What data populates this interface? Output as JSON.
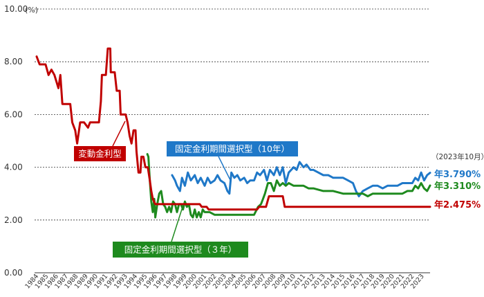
{
  "chart_data": {
    "type": "line",
    "unit_label": "(%)",
    "ylim": [
      0,
      10
    ],
    "y_ticks": [
      "0.00",
      "2.00",
      "4.00",
      "6.00",
      "8.00",
      "10.00"
    ],
    "x_ticks": [
      "1984",
      "1985",
      "1986",
      "1987",
      "1988",
      "1989",
      "1990",
      "1991",
      "1992",
      "1993",
      "1994",
      "1995",
      "1996",
      "1997",
      "1998",
      "1999",
      "2000",
      "2001",
      "2002",
      "2003",
      "2004",
      "2005",
      "2006",
      "2007",
      "2008",
      "2009",
      "2010",
      "2011",
      "2012",
      "2013",
      "2014",
      "2015",
      "2016",
      "2017",
      "2018",
      "2019",
      "2020",
      "2021",
      "2022",
      "2023"
    ],
    "as_of": "（2023年10月）",
    "grid": "horizontal dashed",
    "series": [
      {
        "name": "変動金利型",
        "color": "#c00000",
        "end_label": "年2.475%",
        "points": [
          [
            1984.0,
            8.2
          ],
          [
            1984.3,
            7.9
          ],
          [
            1984.9,
            7.9
          ],
          [
            1985.2,
            7.5
          ],
          [
            1985.5,
            7.7
          ],
          [
            1985.8,
            7.5
          ],
          [
            1986.2,
            7.0
          ],
          [
            1986.4,
            7.5
          ],
          [
            1986.6,
            6.4
          ],
          [
            1987.4,
            6.4
          ],
          [
            1987.6,
            5.7
          ],
          [
            1987.9,
            5.4
          ],
          [
            1988.1,
            4.9
          ],
          [
            1988.4,
            5.7
          ],
          [
            1988.8,
            5.7
          ],
          [
            1989.2,
            5.5
          ],
          [
            1989.4,
            5.7
          ],
          [
            1990.3,
            5.7
          ],
          [
            1990.5,
            6.5
          ],
          [
            1990.6,
            7.5
          ],
          [
            1991.0,
            7.5
          ],
          [
            1991.2,
            8.5
          ],
          [
            1991.45,
            8.5
          ],
          [
            1991.5,
            7.6
          ],
          [
            1991.9,
            7.6
          ],
          [
            1992.1,
            6.9
          ],
          [
            1992.4,
            6.9
          ],
          [
            1992.5,
            6.0
          ],
          [
            1993.0,
            6.0
          ],
          [
            1993.2,
            5.7
          ],
          [
            1993.4,
            5.2
          ],
          [
            1993.6,
            4.9
          ],
          [
            1993.8,
            5.4
          ],
          [
            1994.0,
            5.4
          ],
          [
            1994.1,
            4.6
          ],
          [
            1994.3,
            3.8
          ],
          [
            1994.5,
            3.8
          ],
          [
            1994.6,
            4.4
          ],
          [
            1994.8,
            4.4
          ],
          [
            1995.0,
            4.0
          ],
          [
            1995.25,
            4.0
          ],
          [
            1995.45,
            3.5
          ],
          [
            1995.6,
            3.1
          ],
          [
            1995.75,
            2.8
          ],
          [
            1996.0,
            2.6
          ],
          [
            1998.0,
            2.6
          ],
          [
            1998.5,
            2.6
          ],
          [
            1999.0,
            2.6
          ],
          [
            2000.5,
            2.6
          ],
          [
            2000.7,
            2.5
          ],
          [
            2001.2,
            2.5
          ],
          [
            2001.4,
            2.4
          ],
          [
            2006.3,
            2.4
          ],
          [
            2006.5,
            2.5
          ],
          [
            2007.2,
            2.5
          ],
          [
            2007.5,
            2.9
          ],
          [
            2008.9,
            2.9
          ],
          [
            2009.1,
            2.5
          ],
          [
            2023.8,
            2.5
          ]
        ]
      },
      {
        "name": "固定金利期間選択型（10年）",
        "color": "#1f78c8",
        "end_label": "年3.790%",
        "points": [
          [
            1997.7,
            3.7
          ],
          [
            1998.0,
            3.5
          ],
          [
            1998.2,
            3.3
          ],
          [
            1998.5,
            3.1
          ],
          [
            1998.7,
            3.6
          ],
          [
            1999.0,
            3.3
          ],
          [
            1999.3,
            3.8
          ],
          [
            1999.6,
            3.5
          ],
          [
            2000.0,
            3.7
          ],
          [
            2000.3,
            3.4
          ],
          [
            2000.6,
            3.6
          ],
          [
            2001.0,
            3.3
          ],
          [
            2001.3,
            3.6
          ],
          [
            2001.6,
            3.4
          ],
          [
            2002.0,
            3.5
          ],
          [
            2002.3,
            3.7
          ],
          [
            2002.6,
            3.5
          ],
          [
            2003.0,
            3.4
          ],
          [
            2003.3,
            3.1
          ],
          [
            2003.5,
            3.0
          ],
          [
            2003.7,
            3.8
          ],
          [
            2004.0,
            3.6
          ],
          [
            2004.3,
            3.7
          ],
          [
            2004.6,
            3.5
          ],
          [
            2005.0,
            3.6
          ],
          [
            2005.3,
            3.4
          ],
          [
            2005.6,
            3.5
          ],
          [
            2006.0,
            3.5
          ],
          [
            2006.3,
            3.8
          ],
          [
            2006.6,
            3.7
          ],
          [
            2007.0,
            3.9
          ],
          [
            2007.3,
            3.5
          ],
          [
            2007.6,
            3.9
          ],
          [
            2008.0,
            3.7
          ],
          [
            2008.3,
            4.0
          ],
          [
            2008.6,
            3.7
          ],
          [
            2008.9,
            4.0
          ],
          [
            2009.2,
            3.4
          ],
          [
            2009.5,
            3.8
          ],
          [
            2010.0,
            4.0
          ],
          [
            2010.3,
            3.9
          ],
          [
            2010.6,
            4.2
          ],
          [
            2011.0,
            4.0
          ],
          [
            2011.3,
            4.1
          ],
          [
            2011.7,
            3.9
          ],
          [
            2012.0,
            3.9
          ],
          [
            2012.5,
            3.8
          ],
          [
            2013.0,
            3.7
          ],
          [
            2013.5,
            3.7
          ],
          [
            2014.0,
            3.6
          ],
          [
            2014.5,
            3.6
          ],
          [
            2015.0,
            3.6
          ],
          [
            2015.5,
            3.5
          ],
          [
            2016.0,
            3.4
          ],
          [
            2016.3,
            3.1
          ],
          [
            2016.6,
            2.9
          ],
          [
            2016.8,
            3.0
          ],
          [
            2017.0,
            3.1
          ],
          [
            2017.5,
            3.2
          ],
          [
            2018.0,
            3.3
          ],
          [
            2018.5,
            3.3
          ],
          [
            2019.0,
            3.2
          ],
          [
            2019.5,
            3.3
          ],
          [
            2020.0,
            3.3
          ],
          [
            2020.5,
            3.3
          ],
          [
            2021.0,
            3.4
          ],
          [
            2021.5,
            3.4
          ],
          [
            2022.0,
            3.4
          ],
          [
            2022.3,
            3.6
          ],
          [
            2022.6,
            3.5
          ],
          [
            2022.9,
            3.8
          ],
          [
            2023.2,
            3.5
          ],
          [
            2023.5,
            3.7
          ],
          [
            2023.8,
            3.79
          ]
        ]
      },
      {
        "name": "固定金利期間選択型（３年）",
        "color": "#1e8a1e",
        "end_label": "年3.310%",
        "points": [
          [
            1995.2,
            4.5
          ],
          [
            1995.3,
            4.4
          ],
          [
            1995.45,
            3.5
          ],
          [
            1995.6,
            2.7
          ],
          [
            1995.75,
            2.3
          ],
          [
            1995.9,
            2.8
          ],
          [
            1996.0,
            2.1
          ],
          [
            1996.2,
            2.6
          ],
          [
            1996.4,
            3.0
          ],
          [
            1996.6,
            3.1
          ],
          [
            1996.8,
            2.6
          ],
          [
            1997.0,
            2.5
          ],
          [
            1997.2,
            2.3
          ],
          [
            1997.4,
            2.5
          ],
          [
            1997.6,
            2.3
          ],
          [
            1997.8,
            2.7
          ],
          [
            1998.0,
            2.6
          ],
          [
            1998.2,
            2.3
          ],
          [
            1998.4,
            2.6
          ],
          [
            1998.6,
            2.6
          ],
          [
            1998.8,
            2.4
          ],
          [
            1999.0,
            2.7
          ],
          [
            1999.2,
            2.5
          ],
          [
            1999.4,
            2.6
          ],
          [
            1999.6,
            2.2
          ],
          [
            1999.8,
            2.1
          ],
          [
            2000.0,
            2.4
          ],
          [
            2000.2,
            2.1
          ],
          [
            2000.4,
            2.3
          ],
          [
            2000.6,
            2.1
          ],
          [
            2000.8,
            2.4
          ],
          [
            2001.0,
            2.3
          ],
          [
            2001.5,
            2.3
          ],
          [
            2002.0,
            2.2
          ],
          [
            2003.0,
            2.2
          ],
          [
            2004.0,
            2.2
          ],
          [
            2005.0,
            2.2
          ],
          [
            2006.0,
            2.2
          ],
          [
            2006.4,
            2.5
          ],
          [
            2006.7,
            2.6
          ],
          [
            2006.9,
            2.8
          ],
          [
            2007.1,
            3.0
          ],
          [
            2007.4,
            3.4
          ],
          [
            2007.7,
            3.4
          ],
          [
            2008.0,
            3.1
          ],
          [
            2008.3,
            3.5
          ],
          [
            2008.6,
            3.3
          ],
          [
            2008.9,
            3.4
          ],
          [
            2009.2,
            3.3
          ],
          [
            2009.5,
            3.4
          ],
          [
            2010.0,
            3.3
          ],
          [
            2011.0,
            3.3
          ],
          [
            2011.5,
            3.2
          ],
          [
            2012.0,
            3.2
          ],
          [
            2013.0,
            3.1
          ],
          [
            2014.0,
            3.1
          ],
          [
            2015.0,
            3.0
          ],
          [
            2016.0,
            3.0
          ],
          [
            2016.5,
            3.0
          ],
          [
            2017.0,
            3.0
          ],
          [
            2017.5,
            2.9
          ],
          [
            2018.0,
            3.0
          ],
          [
            2019.0,
            3.0
          ],
          [
            2020.0,
            3.0
          ],
          [
            2021.0,
            3.0
          ],
          [
            2021.5,
            3.1
          ],
          [
            2022.0,
            3.1
          ],
          [
            2022.3,
            3.3
          ],
          [
            2022.6,
            3.2
          ],
          [
            2022.9,
            3.4
          ],
          [
            2023.2,
            3.2
          ],
          [
            2023.5,
            3.1
          ],
          [
            2023.8,
            3.31
          ]
        ]
      }
    ]
  }
}
